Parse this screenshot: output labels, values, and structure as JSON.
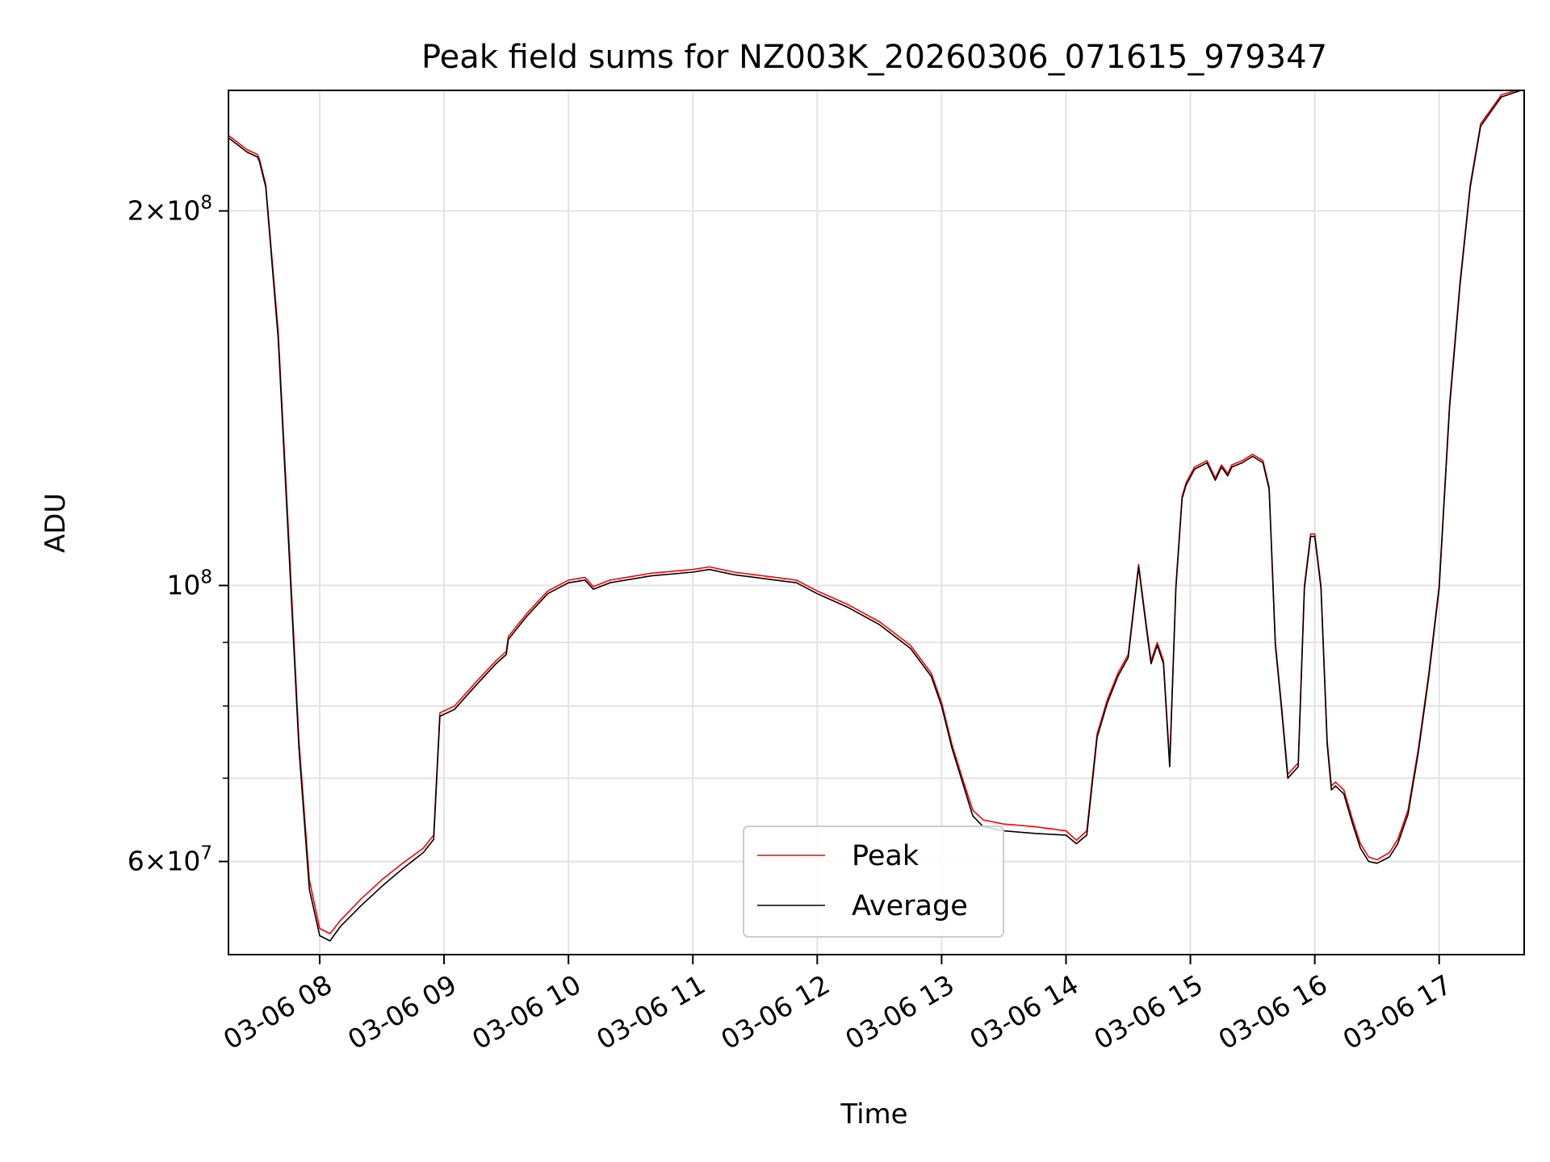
{
  "chart_data": {
    "type": "line",
    "title": "Peak field sums for NZ003K_20260306_071615_979347",
    "xlabel": "Time",
    "ylabel": "ADU",
    "y_scale": "log",
    "ylim": [
      50500000,
      250000000
    ],
    "xlim": [
      "2026-03-06 07:16",
      "2026-03-06 17:41"
    ],
    "x_ticks": [
      "2026-03-06 08:00",
      "2026-03-06 09:00",
      "2026-03-06 10:00",
      "2026-03-06 11:00",
      "2026-03-06 12:00",
      "2026-03-06 13:00",
      "2026-03-06 14:00",
      "2026-03-06 15:00",
      "2026-03-06 16:00",
      "2026-03-06 17:00"
    ],
    "x_tick_labels": [
      "03-06 08",
      "03-06 09",
      "03-06 10",
      "03-06 11",
      "03-06 12",
      "03-06 13",
      "03-06 14",
      "03-06 15",
      "03-06 16",
      "03-06 17"
    ],
    "y_major_ticks": [
      60000000,
      100000000,
      200000000
    ],
    "y_tick_labels": [
      {
        "mantissa": "6",
        "exponent": "7"
      },
      {
        "mantissa": "",
        "exponent": "8"
      },
      {
        "mantissa": "2",
        "exponent": "8"
      }
    ],
    "y_minor_ticks": [
      70000000,
      80000000,
      90000000
    ],
    "grid": true,
    "legend_position": "bottom-center",
    "series": [
      {
        "name": "Peak",
        "color": "#ff0000",
        "x": [
          "2026-03-06 07:16",
          "2026-03-06 07:25",
          "2026-03-06 07:30",
          "2026-03-06 07:31",
          "2026-03-06 07:34",
          "2026-03-06 07:40",
          "2026-03-06 07:45",
          "2026-03-06 07:50",
          "2026-03-06 07:55",
          "2026-03-06 08:00",
          "2026-03-06 08:05",
          "2026-03-06 08:10",
          "2026-03-06 08:20",
          "2026-03-06 08:30",
          "2026-03-06 08:40",
          "2026-03-06 08:50",
          "2026-03-06 08:55",
          "2026-03-06 08:58",
          "2026-03-06 09:05",
          "2026-03-06 09:15",
          "2026-03-06 09:25",
          "2026-03-06 09:30",
          "2026-03-06 09:31",
          "2026-03-06 09:40",
          "2026-03-06 09:50",
          "2026-03-06 10:00",
          "2026-03-06 10:08",
          "2026-03-06 10:12",
          "2026-03-06 10:20",
          "2026-03-06 10:40",
          "2026-03-06 11:00",
          "2026-03-06 11:08",
          "2026-03-06 11:20",
          "2026-03-06 11:30",
          "2026-03-06 11:40",
          "2026-03-06 11:50",
          "2026-03-06 12:00",
          "2026-03-06 12:15",
          "2026-03-06 12:30",
          "2026-03-06 12:45",
          "2026-03-06 12:55",
          "2026-03-06 13:00",
          "2026-03-06 13:05",
          "2026-03-06 13:10",
          "2026-03-06 13:15",
          "2026-03-06 13:20",
          "2026-03-06 13:30",
          "2026-03-06 13:45",
          "2026-03-06 14:00",
          "2026-03-06 14:05",
          "2026-03-06 14:10",
          "2026-03-06 14:15",
          "2026-03-06 14:20",
          "2026-03-06 14:25",
          "2026-03-06 14:30",
          "2026-03-06 14:35",
          "2026-03-06 14:38",
          "2026-03-06 14:41",
          "2026-03-06 14:44",
          "2026-03-06 14:47",
          "2026-03-06 14:50",
          "2026-03-06 14:53",
          "2026-03-06 14:56",
          "2026-03-06 14:58",
          "2026-03-06 15:02",
          "2026-03-06 15:08",
          "2026-03-06 15:12",
          "2026-03-06 15:15",
          "2026-03-06 15:18",
          "2026-03-06 15:20",
          "2026-03-06 15:25",
          "2026-03-06 15:30",
          "2026-03-06 15:35",
          "2026-03-06 15:38",
          "2026-03-06 15:41",
          "2026-03-06 15:44",
          "2026-03-06 15:47",
          "2026-03-06 15:52",
          "2026-03-06 15:55",
          "2026-03-06 15:58",
          "2026-03-06 16:00",
          "2026-03-06 16:03",
          "2026-03-06 16:06",
          "2026-03-06 16:08",
          "2026-03-06 16:10",
          "2026-03-06 16:14",
          "2026-03-06 16:18",
          "2026-03-06 16:22",
          "2026-03-06 16:26",
          "2026-03-06 16:30",
          "2026-03-06 16:36",
          "2026-03-06 16:40",
          "2026-03-06 16:45",
          "2026-03-06 16:50",
          "2026-03-06 16:55",
          "2026-03-06 17:00",
          "2026-03-06 17:05",
          "2026-03-06 17:10",
          "2026-03-06 17:15",
          "2026-03-06 17:20",
          "2026-03-06 17:30",
          "2026-03-06 17:41"
        ],
        "y": [
          230000000,
          224000000,
          222000000,
          220000000,
          210000000,
          160000000,
          110000000,
          75000000,
          58000000,
          53000000,
          52500000,
          53800000,
          56000000,
          58000000,
          59800000,
          61500000,
          63000000,
          79000000,
          80000000,
          83500000,
          87000000,
          88500000,
          91000000,
          95000000,
          99000000,
          101000000,
          101500000,
          99800000,
          101000000,
          102300000,
          103000000,
          103500000,
          102500000,
          102000000,
          101500000,
          101000000,
          99000000,
          96500000,
          93500000,
          89500000,
          85000000,
          80500000,
          74500000,
          70000000,
          66000000,
          64800000,
          64300000,
          64000000,
          63500000,
          62400000,
          63500000,
          76000000,
          81000000,
          85000000,
          88000000,
          104000000,
          95000000,
          87000000,
          90000000,
          87000000,
          72000000,
          100000000,
          118000000,
          121000000,
          124500000,
          126000000,
          122000000,
          125000000,
          123000000,
          125000000,
          126000000,
          127500000,
          126000000,
          120000000,
          90000000,
          80000000,
          70500000,
          72000000,
          100000000,
          110000000,
          110000000,
          100000000,
          75000000,
          69000000,
          69500000,
          68500000,
          65000000,
          62000000,
          60500000,
          60200000,
          61000000,
          62500000,
          66000000,
          74000000,
          85000000,
          100000000,
          140000000,
          175000000,
          210000000,
          235000000,
          248000000,
          251000000
        ]
      },
      {
        "name": "Average",
        "color": "#000000",
        "x": [
          "2026-03-06 07:16",
          "2026-03-06 07:25",
          "2026-03-06 07:30",
          "2026-03-06 07:31",
          "2026-03-06 07:34",
          "2026-03-06 07:40",
          "2026-03-06 07:45",
          "2026-03-06 07:50",
          "2026-03-06 07:55",
          "2026-03-06 08:00",
          "2026-03-06 08:05",
          "2026-03-06 08:10",
          "2026-03-06 08:20",
          "2026-03-06 08:30",
          "2026-03-06 08:40",
          "2026-03-06 08:50",
          "2026-03-06 08:55",
          "2026-03-06 08:58",
          "2026-03-06 09:05",
          "2026-03-06 09:15",
          "2026-03-06 09:25",
          "2026-03-06 09:30",
          "2026-03-06 09:31",
          "2026-03-06 09:40",
          "2026-03-06 09:50",
          "2026-03-06 10:00",
          "2026-03-06 10:08",
          "2026-03-06 10:12",
          "2026-03-06 10:20",
          "2026-03-06 10:40",
          "2026-03-06 11:00",
          "2026-03-06 11:08",
          "2026-03-06 11:20",
          "2026-03-06 11:30",
          "2026-03-06 11:40",
          "2026-03-06 11:50",
          "2026-03-06 12:00",
          "2026-03-06 12:15",
          "2026-03-06 12:30",
          "2026-03-06 12:45",
          "2026-03-06 12:55",
          "2026-03-06 13:00",
          "2026-03-06 13:05",
          "2026-03-06 13:10",
          "2026-03-06 13:15",
          "2026-03-06 13:20",
          "2026-03-06 13:30",
          "2026-03-06 13:45",
          "2026-03-06 14:00",
          "2026-03-06 14:05",
          "2026-03-06 14:10",
          "2026-03-06 14:15",
          "2026-03-06 14:20",
          "2026-03-06 14:25",
          "2026-03-06 14:30",
          "2026-03-06 14:35",
          "2026-03-06 14:38",
          "2026-03-06 14:41",
          "2026-03-06 14:44",
          "2026-03-06 14:47",
          "2026-03-06 14:50",
          "2026-03-06 14:53",
          "2026-03-06 14:56",
          "2026-03-06 14:58",
          "2026-03-06 15:02",
          "2026-03-06 15:08",
          "2026-03-06 15:12",
          "2026-03-06 15:15",
          "2026-03-06 15:18",
          "2026-03-06 15:20",
          "2026-03-06 15:25",
          "2026-03-06 15:30",
          "2026-03-06 15:35",
          "2026-03-06 15:38",
          "2026-03-06 15:41",
          "2026-03-06 15:44",
          "2026-03-06 15:47",
          "2026-03-06 15:52",
          "2026-03-06 15:55",
          "2026-03-06 15:58",
          "2026-03-06 16:00",
          "2026-03-06 16:03",
          "2026-03-06 16:06",
          "2026-03-06 16:08",
          "2026-03-06 16:10",
          "2026-03-06 16:14",
          "2026-03-06 16:18",
          "2026-03-06 16:22",
          "2026-03-06 16:26",
          "2026-03-06 16:30",
          "2026-03-06 16:36",
          "2026-03-06 16:40",
          "2026-03-06 16:45",
          "2026-03-06 16:50",
          "2026-03-06 16:55",
          "2026-03-06 17:00",
          "2026-03-06 17:05",
          "2026-03-06 17:10",
          "2026-03-06 17:15",
          "2026-03-06 17:20",
          "2026-03-06 17:30",
          "2026-03-06 17:41"
        ],
        "y": [
          229000000,
          223000000,
          221000000,
          219000000,
          209000000,
          158000000,
          108000000,
          74000000,
          57000000,
          52300000,
          51800000,
          53200000,
          55300000,
          57300000,
          59200000,
          61000000,
          62500000,
          78500000,
          79500000,
          83000000,
          86500000,
          88000000,
          90500000,
          94500000,
          98500000,
          100500000,
          101000000,
          99300000,
          100500000,
          101800000,
          102500000,
          103000000,
          102000000,
          101500000,
          101000000,
          100500000,
          98500000,
          96000000,
          93000000,
          89000000,
          84500000,
          80000000,
          74000000,
          69500000,
          65300000,
          64000000,
          63500000,
          63200000,
          63000000,
          62000000,
          63000000,
          75500000,
          80500000,
          84500000,
          87500000,
          103500000,
          94500000,
          86500000,
          89500000,
          86500000,
          71500000,
          99500000,
          117500000,
          120500000,
          124000000,
          125500000,
          121500000,
          124500000,
          122500000,
          124500000,
          125500000,
          127000000,
          125500000,
          119500000,
          89500000,
          79500000,
          70000000,
          71500000,
          99500000,
          109500000,
          109500000,
          99500000,
          74500000,
          68500000,
          69000000,
          68000000,
          64500000,
          61500000,
          60000000,
          59800000,
          60500000,
          62000000,
          65500000,
          73500000,
          84500000,
          99500000,
          139000000,
          174000000,
          209000000,
          234000000,
          247000000,
          250500000
        ]
      }
    ]
  }
}
